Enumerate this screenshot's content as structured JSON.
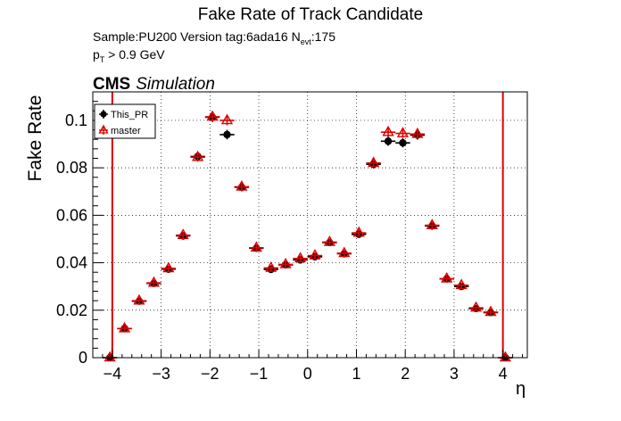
{
  "header": {
    "title": "Fake Rate of Track Candidate",
    "sample_prefix": "Sample:PU200   Version tag:6ada16  N",
    "sample_sub": "evt",
    "sample_suffix": ":175",
    "cut_prefix": "p",
    "cut_sub": "T",
    "cut_suffix": " > 0.9 GeV",
    "cms": "CMS",
    "simulation": "Simulation"
  },
  "chart_data": {
    "type": "scatter",
    "title": "Fake Rate of Track Candidate",
    "xlabel": "η",
    "ylabel": "Fake Rate",
    "xlim": [
      -4.4,
      4.5
    ],
    "ylim": [
      0,
      0.112
    ],
    "xticks": [
      -4,
      -3,
      -2,
      -1,
      0,
      1,
      2,
      3,
      4
    ],
    "xtick_labels": [
      "−4",
      "−3",
      "−2",
      "−1",
      "0",
      "1",
      "2",
      "3",
      "4"
    ],
    "yticks": [
      0,
      0.02,
      0.04,
      0.06,
      0.08,
      0.1
    ],
    "ytick_labels": [
      "0",
      "0.02",
      "0.04",
      "0.06",
      "0.08",
      "0.1"
    ],
    "grid": true,
    "legend_position": "top-left",
    "bin_half_width": 0.15,
    "vertical_lines": [
      -4.0,
      4.0
    ],
    "x": [
      -4.05,
      -3.75,
      -3.45,
      -3.15,
      -2.85,
      -2.55,
      -2.25,
      -1.95,
      -1.65,
      -1.35,
      -1.05,
      -0.75,
      -0.45,
      -0.15,
      0.15,
      0.45,
      0.75,
      1.05,
      1.35,
      1.65,
      1.95,
      2.25,
      2.55,
      2.85,
      3.15,
      3.45,
      3.75,
      4.05
    ],
    "series": [
      {
        "name": "This_PR",
        "color": "#000000",
        "marker": "filled-circle",
        "values": [
          0.0,
          0.0123,
          0.0238,
          0.0313,
          0.0373,
          0.0513,
          0.0848,
          0.1013,
          0.094,
          0.0718,
          0.0461,
          0.0372,
          0.0391,
          0.0412,
          0.0425,
          0.0485,
          0.0438,
          0.052,
          0.0815,
          0.0912,
          0.0905,
          0.0938,
          0.0555,
          0.0332,
          0.03,
          0.0207,
          0.019,
          0.0
        ],
        "errors": [
          0.0012,
          0.0011,
          0.0012,
          0.0012,
          0.0013,
          0.0014,
          0.0018,
          0.002,
          0.002,
          0.0017,
          0.0014,
          0.0013,
          0.0013,
          0.0013,
          0.0013,
          0.0014,
          0.0013,
          0.0014,
          0.0018,
          0.0019,
          0.0019,
          0.0019,
          0.0015,
          0.0012,
          0.0012,
          0.0011,
          0.0011,
          0.0012
        ]
      },
      {
        "name": "master",
        "color": "#dd0000",
        "marker": "open-triangle",
        "values": [
          0.0,
          0.0123,
          0.024,
          0.0315,
          0.0376,
          0.0516,
          0.0845,
          0.1015,
          0.1,
          0.072,
          0.0463,
          0.0378,
          0.0393,
          0.0418,
          0.043,
          0.0487,
          0.044,
          0.0526,
          0.082,
          0.095,
          0.0945,
          0.0942,
          0.0558,
          0.0333,
          0.0305,
          0.021,
          0.0192,
          0.0
        ],
        "errors": [
          0.0012,
          0.0011,
          0.0012,
          0.0012,
          0.0013,
          0.0014,
          0.0018,
          0.002,
          0.002,
          0.0017,
          0.0014,
          0.0013,
          0.0013,
          0.0013,
          0.0013,
          0.0014,
          0.0013,
          0.0014,
          0.0018,
          0.0019,
          0.0019,
          0.0019,
          0.0015,
          0.0012,
          0.0012,
          0.0011,
          0.0011,
          0.0012
        ]
      }
    ]
  }
}
